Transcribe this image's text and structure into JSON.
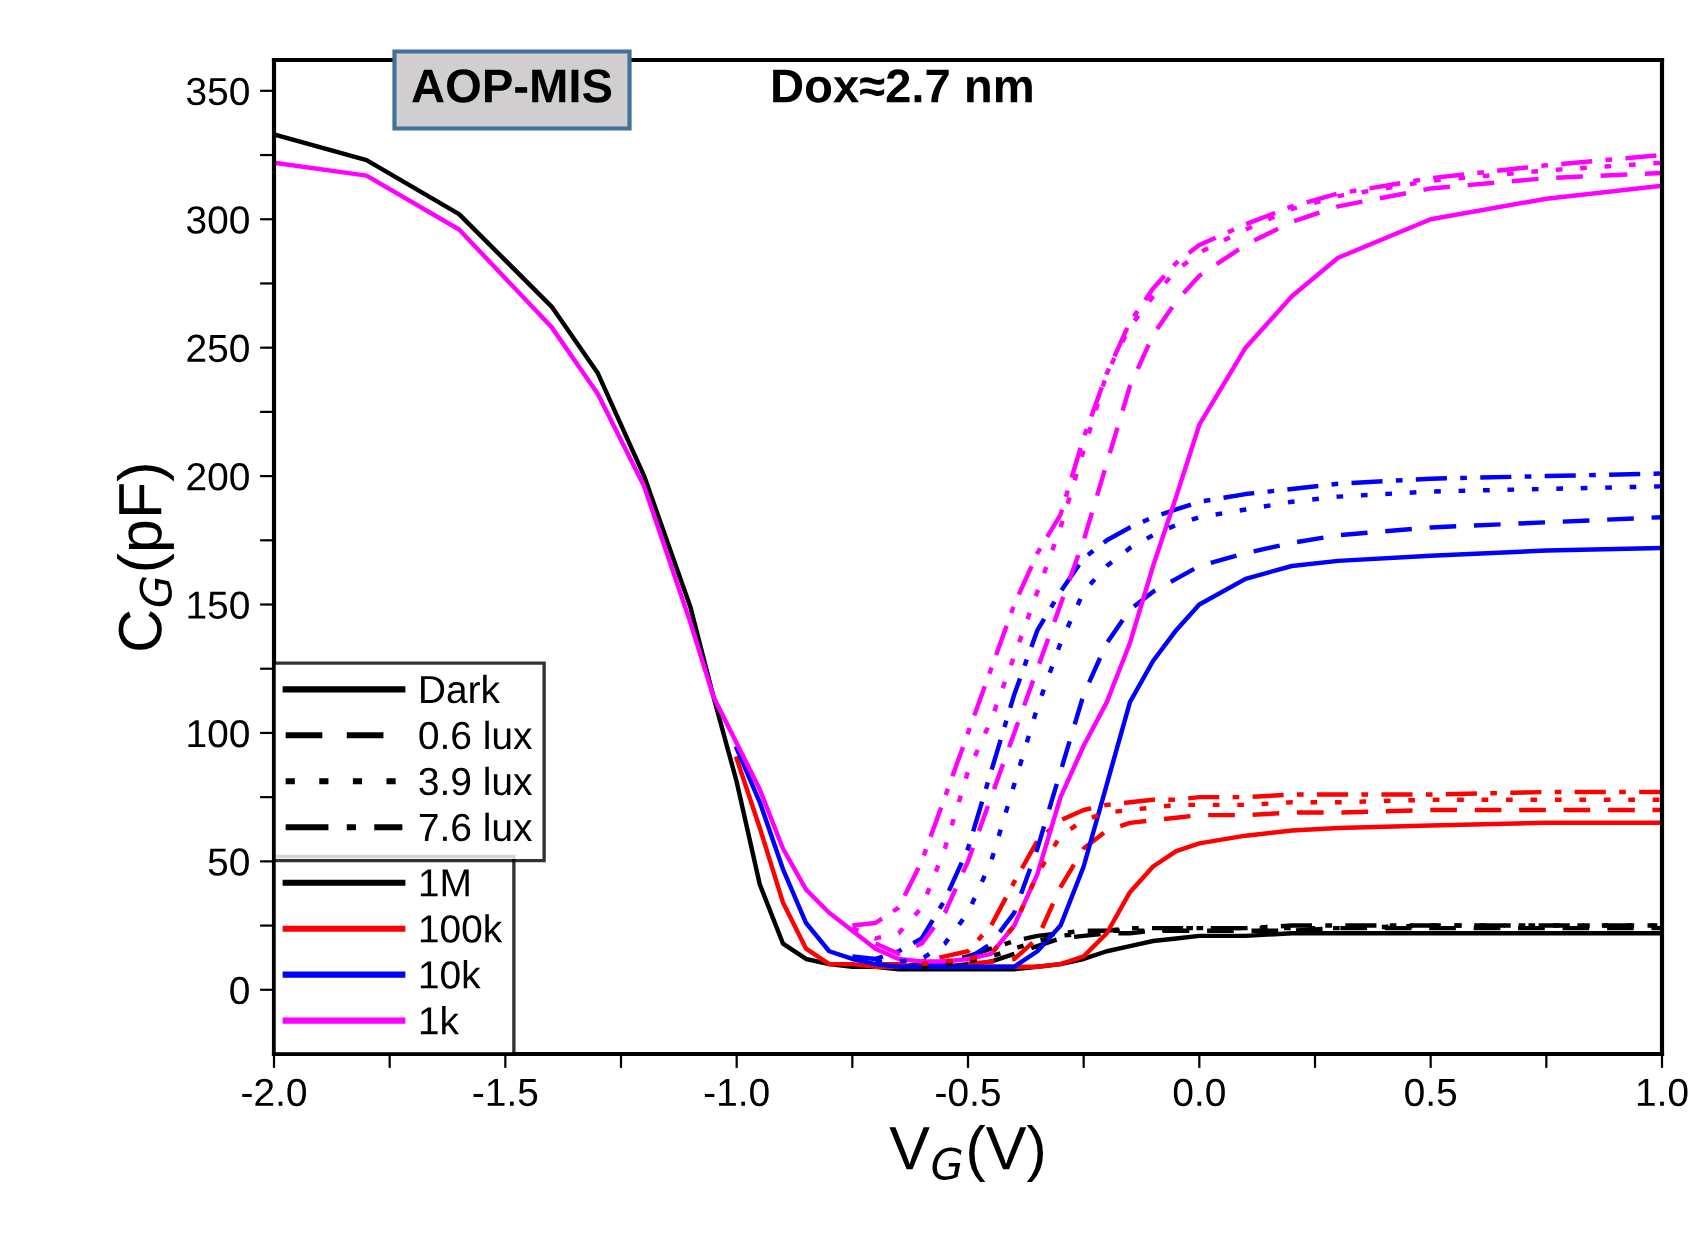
{
  "chart_data": {
    "type": "line",
    "title": "AOP-MIS",
    "subtitle": "Dox≈2.7 nm",
    "xlabel": "V$_{G}$(V)",
    "ylabel": "C$_{G}$(pF)",
    "x": [
      -2.0,
      -1.8,
      -1.6,
      -1.4,
      -1.3,
      -1.2,
      -1.1,
      -1.05,
      -1.0,
      -0.95,
      -0.9,
      -0.85,
      -0.8,
      -0.75,
      -0.7,
      -0.65,
      -0.6,
      -0.55,
      -0.5,
      -0.45,
      -0.4,
      -0.35,
      -0.3,
      -0.25,
      -0.2,
      -0.15,
      -0.1,
      -0.05,
      0.0,
      0.1,
      0.2,
      0.3,
      0.5,
      0.75,
      1.0
    ],
    "xlim": [
      -2.0,
      1.0
    ],
    "xticks": [
      {
        "value": -2.0,
        "label": "-2.0"
      },
      {
        "value": -1.75,
        "label": null
      },
      {
        "value": -1.5,
        "label": "-1.5"
      },
      {
        "value": -1.25,
        "label": null
      },
      {
        "value": -1.0,
        "label": "-1.0"
      },
      {
        "value": -0.75,
        "label": null
      },
      {
        "value": -0.5,
        "label": "-0.5"
      },
      {
        "value": -0.25,
        "label": null
      },
      {
        "value": 0.0,
        "label": "0.0"
      },
      {
        "value": 0.25,
        "label": null
      },
      {
        "value": 0.5,
        "label": "0.5"
      },
      {
        "value": 0.75,
        "label": null
      },
      {
        "value": 1.0,
        "label": "1.0"
      }
    ],
    "ylim": [
      -25,
      362
    ],
    "yticks": [
      0,
      {
        "value": 25,
        "label": null
      },
      50,
      {
        "value": 75,
        "label": null
      },
      100,
      {
        "value": 125,
        "label": null
      },
      150,
      {
        "value": 175,
        "label": null
      },
      200,
      {
        "value": 225,
        "label": null
      },
      250,
      {
        "value": 275,
        "label": null
      },
      300,
      {
        "value": 325,
        "label": null
      },
      350
    ],
    "grid": false,
    "legend": "bottom left",
    "marker": "none",
    "annotations": [
      "1M",
      "100k",
      "10k",
      "1k"
    ],
    "series": [
      {
        "name": "Dark",
        "color": "#000000",
        "line_style": "solid",
        "values": [
          333,
          323,
          302,
          266,
          240,
          200,
          149,
          114,
          81,
          41,
          18,
          12,
          10,
          9,
          9,
          8,
          8,
          8,
          8,
          8,
          8,
          9,
          10,
          12,
          15,
          17,
          19,
          20,
          21,
          21,
          22,
          22,
          22,
          22,
          22
        ]
      },
      {
        "name": "0.6 lux",
        "color": "#000000",
        "line_style": "dashed",
        "values": [
          null,
          null,
          null,
          null,
          null,
          null,
          null,
          null,
          null,
          null,
          null,
          null,
          null,
          null,
          null,
          null,
          null,
          9,
          10,
          11,
          14,
          17,
          20,
          21,
          22,
          22,
          23,
          23,
          23,
          23,
          23,
          24,
          24,
          24,
          24
        ]
      },
      {
        "name": "3.9 lux",
        "color": "#000000",
        "line_style": "dotted",
        "values": [
          null,
          null,
          null,
          null,
          null,
          null,
          null,
          null,
          null,
          null,
          null,
          null,
          null,
          null,
          null,
          null,
          9,
          10,
          11,
          13,
          16,
          19,
          21,
          22,
          23,
          23,
          23,
          24,
          24,
          24,
          24,
          24,
          25,
          25,
          25
        ]
      },
      {
        "name": "7.6 lux",
        "color": "#000000",
        "line_style": "dashdot",
        "values": [
          null,
          null,
          null,
          null,
          null,
          null,
          null,
          null,
          null,
          null,
          null,
          null,
          null,
          null,
          null,
          9,
          10,
          11,
          13,
          16,
          19,
          21,
          22,
          23,
          23,
          24,
          24,
          24,
          24,
          24,
          25,
          25,
          25,
          25,
          25
        ]
      },
      {
        "color": "#ff0000",
        "line_style": "solid",
        "values": [
          null,
          null,
          null,
          null,
          null,
          null,
          null,
          null,
          90,
          63,
          34,
          16,
          10,
          10,
          9,
          9,
          9,
          9,
          9,
          9,
          9,
          9,
          10,
          13,
          22,
          38,
          48,
          54,
          57,
          60,
          62,
          63,
          64,
          65,
          65
        ]
      },
      {
        "color": "#ff0000",
        "line_style": "dashed",
        "values": [
          null,
          null,
          null,
          null,
          null,
          null,
          null,
          null,
          null,
          null,
          null,
          null,
          null,
          null,
          null,
          null,
          null,
          null,
          10,
          11,
          12,
          20,
          40,
          55,
          62,
          65,
          66,
          67,
          68,
          68,
          69,
          69,
          70,
          70,
          70
        ]
      },
      {
        "color": "#ff0000",
        "line_style": "dotted",
        "values": [
          null,
          null,
          null,
          null,
          null,
          null,
          null,
          null,
          null,
          null,
          null,
          null,
          null,
          null,
          null,
          null,
          10,
          11,
          12,
          14,
          25,
          45,
          60,
          66,
          69,
          70,
          71,
          72,
          72,
          72,
          73,
          73,
          74,
          74,
          74
        ]
      },
      {
        "color": "#ff0000",
        "line_style": "dashdot",
        "values": [
          null,
          null,
          null,
          null,
          null,
          null,
          null,
          null,
          null,
          null,
          null,
          null,
          null,
          null,
          10,
          10,
          11,
          13,
          15,
          25,
          42,
          58,
          66,
          70,
          72,
          73,
          74,
          74,
          75,
          75,
          76,
          76,
          76,
          77,
          77
        ]
      },
      {
        "color": "#0000ff",
        "line_style": "solid",
        "values": [
          null,
          null,
          null,
          null,
          null,
          null,
          null,
          null,
          94,
          73,
          47,
          26,
          15,
          12,
          10,
          9,
          9,
          9,
          9,
          9,
          9,
          15,
          25,
          48,
          80,
          112,
          128,
          140,
          150,
          160,
          165,
          167,
          169,
          171,
          172
        ]
      },
      {
        "color": "#0000ff",
        "line_style": "dashed",
        "values": [
          null,
          null,
          null,
          null,
          null,
          null,
          null,
          null,
          null,
          null,
          null,
          null,
          null,
          null,
          null,
          null,
          10,
          10,
          12,
          18,
          30,
          55,
          85,
          115,
          135,
          148,
          155,
          160,
          165,
          170,
          174,
          177,
          180,
          182,
          184
        ]
      },
      {
        "color": "#0000ff",
        "line_style": "dotted",
        "values": [
          null,
          null,
          null,
          null,
          null,
          null,
          null,
          null,
          null,
          null,
          null,
          null,
          null,
          null,
          11,
          11,
          12,
          18,
          30,
          50,
          80,
          110,
          135,
          155,
          165,
          172,
          177,
          181,
          184,
          187,
          190,
          192,
          194,
          195,
          196
        ]
      },
      {
        "color": "#0000ff",
        "line_style": "dashdot",
        "values": [
          null,
          null,
          null,
          null,
          null,
          null,
          null,
          null,
          null,
          null,
          null,
          null,
          null,
          13,
          12,
          15,
          20,
          35,
          55,
          85,
          115,
          140,
          155,
          168,
          175,
          180,
          184,
          187,
          190,
          193,
          195,
          197,
          199,
          200,
          201
        ]
      },
      {
        "color": "#ff00ff",
        "line_style": "solid",
        "values": [
          322,
          317,
          296,
          258,
          232,
          196,
          143,
          114,
          96,
          78,
          55,
          39,
          30,
          23,
          16,
          12,
          11,
          11,
          12,
          14,
          25,
          45,
          75,
          95,
          112,
          135,
          165,
          192,
          220,
          250,
          270,
          285,
          300,
          308,
          313
        ]
      },
      {
        "color": "#ff00ff",
        "line_style": "dashed",
        "values": [
          null,
          null,
          null,
          null,
          null,
          null,
          null,
          null,
          null,
          null,
          null,
          null,
          null,
          null,
          18,
          14,
          18,
          30,
          50,
          75,
          100,
          125,
          150,
          175,
          205,
          235,
          255,
          268,
          278,
          290,
          299,
          305,
          312,
          316,
          318
        ]
      },
      {
        "color": "#ff00ff",
        "line_style": "dotted",
        "values": [
          null,
          null,
          null,
          null,
          null,
          null,
          null,
          null,
          null,
          null,
          null,
          null,
          null,
          24,
          20,
          22,
          32,
          55,
          85,
          105,
          130,
          155,
          180,
          210,
          240,
          258,
          270,
          280,
          287,
          296,
          304,
          309,
          315,
          319,
          322
        ]
      },
      {
        "color": "#ff00ff",
        "line_style": "dashdot",
        "values": [
          null,
          null,
          null,
          null,
          null,
          null,
          null,
          null,
          null,
          null,
          null,
          null,
          null,
          25,
          26,
          32,
          50,
          75,
          100,
          125,
          150,
          170,
          185,
          215,
          240,
          260,
          273,
          283,
          290,
          298,
          305,
          310,
          316,
          321,
          325
        ]
      }
    ]
  }
}
